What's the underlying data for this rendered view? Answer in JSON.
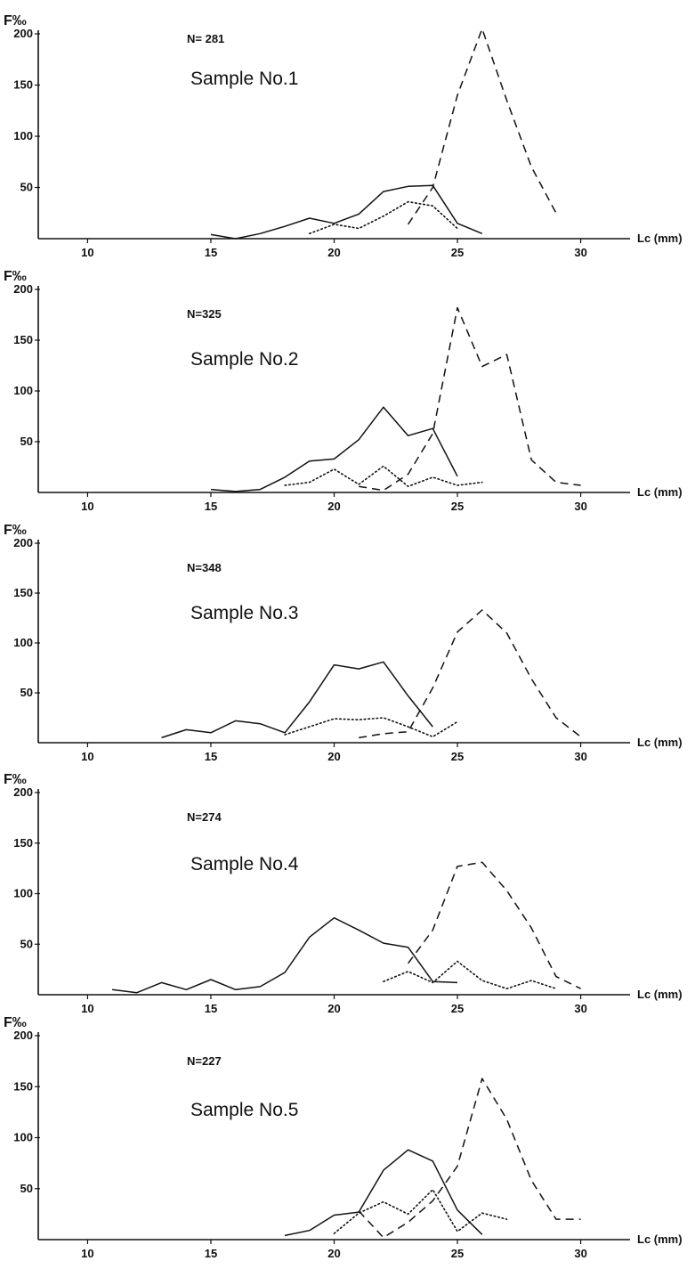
{
  "chart_data": [
    {
      "type": "line",
      "title": "Sample No.1",
      "n_label": "N= 281",
      "ylabel": "F‰",
      "xlabel": "Lc (mm)",
      "xlim": [
        8,
        32
      ],
      "ylim": [
        0,
        200
      ],
      "x_ticks": [
        10,
        15,
        20,
        25,
        30
      ],
      "y_ticks": [
        50,
        100,
        150,
        200
      ],
      "series": [
        {
          "style": "solid",
          "points": [
            [
              15,
              4
            ],
            [
              16,
              0
            ],
            [
              17,
              5
            ],
            [
              18,
              12
            ],
            [
              19,
              20
            ],
            [
              20,
              15
            ],
            [
              21,
              24
            ],
            [
              22,
              46
            ],
            [
              23,
              51
            ],
            [
              24,
              52
            ],
            [
              25,
              15
            ],
            [
              26,
              5
            ]
          ]
        },
        {
          "style": "dotted",
          "points": [
            [
              19,
              5
            ],
            [
              20,
              14
            ],
            [
              21,
              10
            ],
            [
              22,
              22
            ],
            [
              23,
              36
            ],
            [
              24,
              32
            ],
            [
              25,
              10
            ]
          ]
        },
        {
          "style": "dashed",
          "points": [
            [
              23,
              14
            ],
            [
              24,
              50
            ],
            [
              25,
              140
            ],
            [
              26,
              205
            ],
            [
              27,
              135
            ],
            [
              28,
              70
            ],
            [
              29,
              25
            ]
          ]
        }
      ]
    },
    {
      "type": "line",
      "title": "Sample No.2",
      "n_label": "N=325",
      "ylabel": "F‰",
      "xlabel": "Lc (mm)",
      "xlim": [
        8,
        32
      ],
      "ylim": [
        0,
        200
      ],
      "x_ticks": [
        10,
        15,
        20,
        25,
        30
      ],
      "y_ticks": [
        50,
        100,
        150,
        200
      ],
      "series": [
        {
          "style": "solid",
          "points": [
            [
              15,
              3
            ],
            [
              16,
              1
            ],
            [
              17,
              3
            ],
            [
              18,
              15
            ],
            [
              19,
              31
            ],
            [
              20,
              33
            ],
            [
              21,
              52
            ],
            [
              22,
              84
            ],
            [
              23,
              56
            ],
            [
              24,
              63
            ],
            [
              25,
              16
            ]
          ]
        },
        {
          "style": "dotted",
          "points": [
            [
              18,
              7
            ],
            [
              19,
              10
            ],
            [
              20,
              23
            ],
            [
              21,
              8
            ],
            [
              22,
              26
            ],
            [
              23,
              6
            ],
            [
              24,
              15
            ],
            [
              25,
              7
            ],
            [
              26,
              10
            ]
          ]
        },
        {
          "style": "dashed",
          "points": [
            [
              21,
              6
            ],
            [
              22,
              2
            ],
            [
              23,
              18
            ],
            [
              24,
              58
            ],
            [
              25,
              182
            ],
            [
              26,
              124
            ],
            [
              27,
              136
            ],
            [
              28,
              32
            ],
            [
              29,
              10
            ],
            [
              30,
              7
            ]
          ]
        }
      ]
    },
    {
      "type": "line",
      "title": "Sample No.3",
      "n_label": "N=348",
      "ylabel": "F‰",
      "xlabel": "Lc (mm)",
      "xlim": [
        8,
        32
      ],
      "ylim": [
        0,
        200
      ],
      "x_ticks": [
        10,
        15,
        20,
        25,
        30
      ],
      "y_ticks": [
        50,
        100,
        150,
        200
      ],
      "series": [
        {
          "style": "solid",
          "points": [
            [
              13,
              5
            ],
            [
              14,
              13
            ],
            [
              15,
              10
            ],
            [
              16,
              22
            ],
            [
              17,
              19
            ],
            [
              18,
              10
            ],
            [
              19,
              41
            ],
            [
              20,
              78
            ],
            [
              21,
              74
            ],
            [
              22,
              81
            ],
            [
              23,
              47
            ],
            [
              24,
              16
            ]
          ]
        },
        {
          "style": "dotted",
          "points": [
            [
              18,
              8
            ],
            [
              19,
              16
            ],
            [
              20,
              24
            ],
            [
              21,
              23
            ],
            [
              22,
              25
            ],
            [
              23,
              16
            ],
            [
              24,
              6
            ],
            [
              25,
              21
            ]
          ]
        },
        {
          "style": "dashed",
          "points": [
            [
              21,
              5
            ],
            [
              22,
              9
            ],
            [
              23,
              11
            ],
            [
              24,
              55
            ],
            [
              25,
              111
            ],
            [
              26,
              133
            ],
            [
              27,
              110
            ],
            [
              28,
              64
            ],
            [
              29,
              25
            ],
            [
              30,
              6
            ]
          ]
        }
      ]
    },
    {
      "type": "line",
      "title": "Sample No.4",
      "n_label": "N=274",
      "ylabel": "F‰",
      "xlabel": "Lc (mm)",
      "xlim": [
        8,
        32
      ],
      "ylim": [
        0,
        200
      ],
      "x_ticks": [
        10,
        15,
        20,
        25,
        30
      ],
      "y_ticks": [
        50,
        100,
        150,
        200
      ],
      "series": [
        {
          "style": "solid",
          "points": [
            [
              11,
              5
            ],
            [
              12,
              2
            ],
            [
              13,
              12
            ],
            [
              14,
              5
            ],
            [
              15,
              15
            ],
            [
              16,
              5
            ],
            [
              17,
              8
            ],
            [
              18,
              22
            ],
            [
              19,
              57
            ],
            [
              20,
              76
            ],
            [
              21,
              64
            ],
            [
              22,
              51
            ],
            [
              23,
              47
            ],
            [
              24,
              13
            ],
            [
              25,
              12
            ]
          ]
        },
        {
          "style": "dotted",
          "points": [
            [
              22,
              13
            ],
            [
              23,
              23
            ],
            [
              24,
              12
            ],
            [
              25,
              33
            ],
            [
              26,
              14
            ],
            [
              27,
              6
            ],
            [
              28,
              14
            ],
            [
              29,
              6
            ]
          ]
        },
        {
          "style": "dashed",
          "points": [
            [
              23,
              31
            ],
            [
              24,
              64
            ],
            [
              25,
              127
            ],
            [
              26,
              131
            ],
            [
              27,
              103
            ],
            [
              28,
              66
            ],
            [
              29,
              18
            ],
            [
              30,
              6
            ]
          ]
        }
      ]
    },
    {
      "type": "line",
      "title": "Sample No.5",
      "n_label": "N=227",
      "ylabel": "F‰",
      "xlabel": "Lc (mm)",
      "xlim": [
        8,
        32
      ],
      "ylim": [
        0,
        200
      ],
      "x_ticks": [
        10,
        15,
        20,
        25,
        30
      ],
      "y_ticks": [
        50,
        100,
        150,
        200
      ],
      "series": [
        {
          "style": "solid",
          "points": [
            [
              18,
              4
            ],
            [
              19,
              9
            ],
            [
              20,
              24
            ],
            [
              21,
              27
            ],
            [
              22,
              68
            ],
            [
              23,
              88
            ],
            [
              24,
              77
            ],
            [
              25,
              29
            ],
            [
              26,
              5
            ]
          ]
        },
        {
          "style": "dotted",
          "points": [
            [
              20,
              6
            ],
            [
              21,
              26
            ],
            [
              22,
              37
            ],
            [
              23,
              25
            ],
            [
              24,
              49
            ],
            [
              25,
              8
            ],
            [
              26,
              26
            ],
            [
              27,
              20
            ]
          ]
        },
        {
          "style": "dashed",
          "points": [
            [
              21,
              28
            ],
            [
              22,
              2
            ],
            [
              23,
              17
            ],
            [
              24,
              38
            ],
            [
              25,
              72
            ],
            [
              26,
              158
            ],
            [
              27,
              118
            ],
            [
              28,
              58
            ],
            [
              29,
              20
            ],
            [
              30,
              20
            ]
          ]
        }
      ]
    }
  ]
}
